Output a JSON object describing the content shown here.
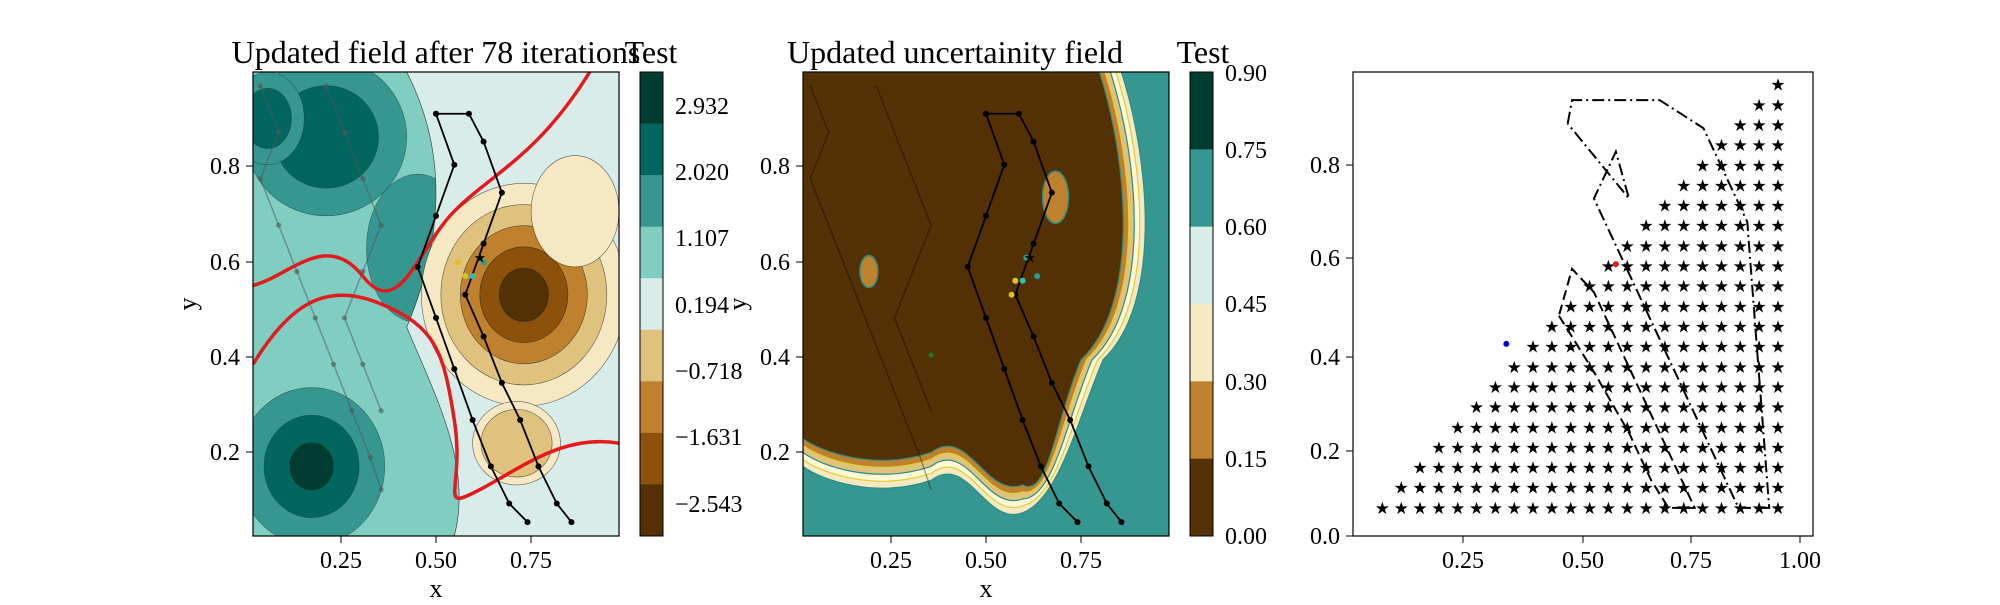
{
  "panels": {
    "left": {
      "title": "Updated field after 78 iterations",
      "colorbar_title": "Test",
      "xlabel": "x",
      "ylabel": "y",
      "xticks": [
        "0.25",
        "0.50",
        "0.75"
      ],
      "yticks": [
        "0.2",
        "0.4",
        "0.6",
        "0.8"
      ],
      "colorbar_ticks": [
        "2.932",
        "2.020",
        "1.107",
        "0.194",
        "−0.718",
        "−1.631",
        "−2.543"
      ]
    },
    "middle": {
      "title": "Updated uncertainity field",
      "colorbar_title": "Test",
      "xlabel": "x",
      "ylabel": "y",
      "xticks": [
        "0.25",
        "0.50",
        "0.75"
      ],
      "yticks": [
        "0.2",
        "0.4",
        "0.6",
        "0.8"
      ],
      "colorbar_ticks": [
        "0.90",
        "0.75",
        "0.60",
        "0.45",
        "0.30",
        "0.15",
        "0.00"
      ]
    },
    "right": {
      "xticks": [
        "0.25",
        "0.50",
        "0.75",
        "1.00"
      ],
      "yticks": [
        "0.0",
        "0.2",
        "0.4",
        "0.6",
        "0.8"
      ]
    }
  },
  "colors": {
    "field_bands": [
      "#543005",
      "#8c510a",
      "#bf812d",
      "#dfc27d",
      "#f6e8c3",
      "#d8ecea",
      "#80cdc1",
      "#35978f",
      "#01665e",
      "#003c30"
    ],
    "boundary_red": "#e41a1c",
    "star_purple": "#9467bd",
    "path_black": "#000000"
  },
  "chart_data": [
    {
      "type": "heatmap",
      "title": "Updated field after 78 iterations",
      "xlabel": "x",
      "ylabel": "y",
      "xlim": [
        0.0,
        1.0
      ],
      "ylim": [
        0.0,
        1.0
      ],
      "colorbar": {
        "label": "Test",
        "levels": [
          -3.0,
          -2.543,
          -1.631,
          -0.718,
          0.194,
          1.107,
          2.02,
          2.932,
          3.4
        ]
      },
      "features": {
        "low_centers": [
          [
            0.76,
            0.52
          ],
          [
            0.72,
            0.2
          ]
        ],
        "high_centers": [
          [
            0.16,
            0.13
          ],
          [
            0.22,
            0.85
          ],
          [
            0.65,
            0.88
          ],
          [
            0.05,
            0.92
          ]
        ],
        "agent_paths": [
          [
            [
              0.5,
              0.91
            ],
            [
              0.59,
              0.91
            ],
            [
              0.63,
              0.85
            ],
            [
              0.68,
              0.74
            ],
            [
              0.63,
              0.63
            ],
            [
              0.58,
              0.52
            ],
            [
              0.63,
              0.43
            ],
            [
              0.68,
              0.33
            ],
            [
              0.73,
              0.25
            ],
            [
              0.78,
              0.15
            ],
            [
              0.83,
              0.07
            ],
            [
              0.87,
              0.03
            ]
          ],
          [
            [
              0.5,
              0.91
            ],
            [
              0.55,
              0.8
            ],
            [
              0.5,
              0.69
            ],
            [
              0.45,
              0.58
            ],
            [
              0.5,
              0.47
            ],
            [
              0.55,
              0.36
            ],
            [
              0.6,
              0.25
            ],
            [
              0.65,
              0.15
            ],
            [
              0.7,
              0.07
            ],
            [
              0.75,
              0.03
            ]
          ]
        ],
        "samples": [
          [
            0.62,
            0.6
          ],
          [
            0.58,
            0.56
          ],
          [
            0.6,
            0.56
          ],
          [
            0.56,
            0.59
          ],
          [
            0.63,
            0.59
          ]
        ],
        "best_point": [
          0.62,
          0.6
        ]
      }
    },
    {
      "type": "heatmap",
      "title": "Updated uncertainity field",
      "xlabel": "x",
      "ylabel": "y",
      "xlim": [
        0.0,
        1.0
      ],
      "ylim": [
        0.0,
        1.0
      ],
      "colorbar": {
        "label": "Test",
        "levels": [
          0.0,
          0.15,
          0.3,
          0.45,
          0.6,
          0.75,
          0.9
        ]
      },
      "features": {
        "islands": [
          [
            0.18,
            0.57
          ],
          [
            0.69,
            0.73
          ]
        ],
        "samples": [
          [
            0.61,
            0.6
          ],
          [
            0.58,
            0.55
          ],
          [
            0.6,
            0.55
          ],
          [
            0.57,
            0.52
          ],
          [
            0.64,
            0.56
          ]
        ],
        "best_point": [
          0.62,
          0.6
        ]
      }
    },
    {
      "type": "scatter",
      "xlim": [
        0.0,
        1.05
      ],
      "ylim": [
        -0.02,
        0.97
      ],
      "series": [
        {
          "marker": "star",
          "rows_bottom_y": 0.04,
          "row_step": 0.043,
          "col_step": 0.043,
          "hypotenuse": "y = x - 0.01"
        },
        {
          "marker": "dot",
          "color": "#0000cc",
          "points": [
            [
              0.35,
              0.39
            ]
          ]
        },
        {
          "marker": "dot",
          "color": "#e41a1c",
          "points": [
            [
              0.6,
              0.56
            ]
          ]
        }
      ],
      "paths": {
        "dashdot": [
          [
            0.49,
            0.86
          ],
          [
            0.5,
            0.91
          ],
          [
            0.7,
            0.91
          ],
          [
            0.8,
            0.85
          ],
          [
            0.85,
            0.75
          ],
          [
            0.9,
            0.65
          ],
          [
            0.95,
            0.04
          ],
          [
            0.88,
            0.04
          ],
          [
            0.85,
            0.1
          ],
          [
            0.8,
            0.2
          ],
          [
            0.75,
            0.3
          ],
          [
            0.7,
            0.4
          ],
          [
            0.55,
            0.7
          ],
          [
            0.6,
            0.8
          ],
          [
            0.63,
            0.7
          ],
          [
            0.49,
            0.86
          ]
        ],
        "dashed": [
          [
            0.47,
            0.45
          ],
          [
            0.55,
            0.33
          ],
          [
            0.63,
            0.2
          ],
          [
            0.68,
            0.1
          ],
          [
            0.72,
            0.04
          ],
          [
            0.78,
            0.04
          ],
          [
            0.7,
            0.2
          ],
          [
            0.65,
            0.3
          ],
          [
            0.6,
            0.4
          ],
          [
            0.55,
            0.5
          ],
          [
            0.5,
            0.55
          ],
          [
            0.47,
            0.45
          ]
        ]
      }
    }
  ]
}
